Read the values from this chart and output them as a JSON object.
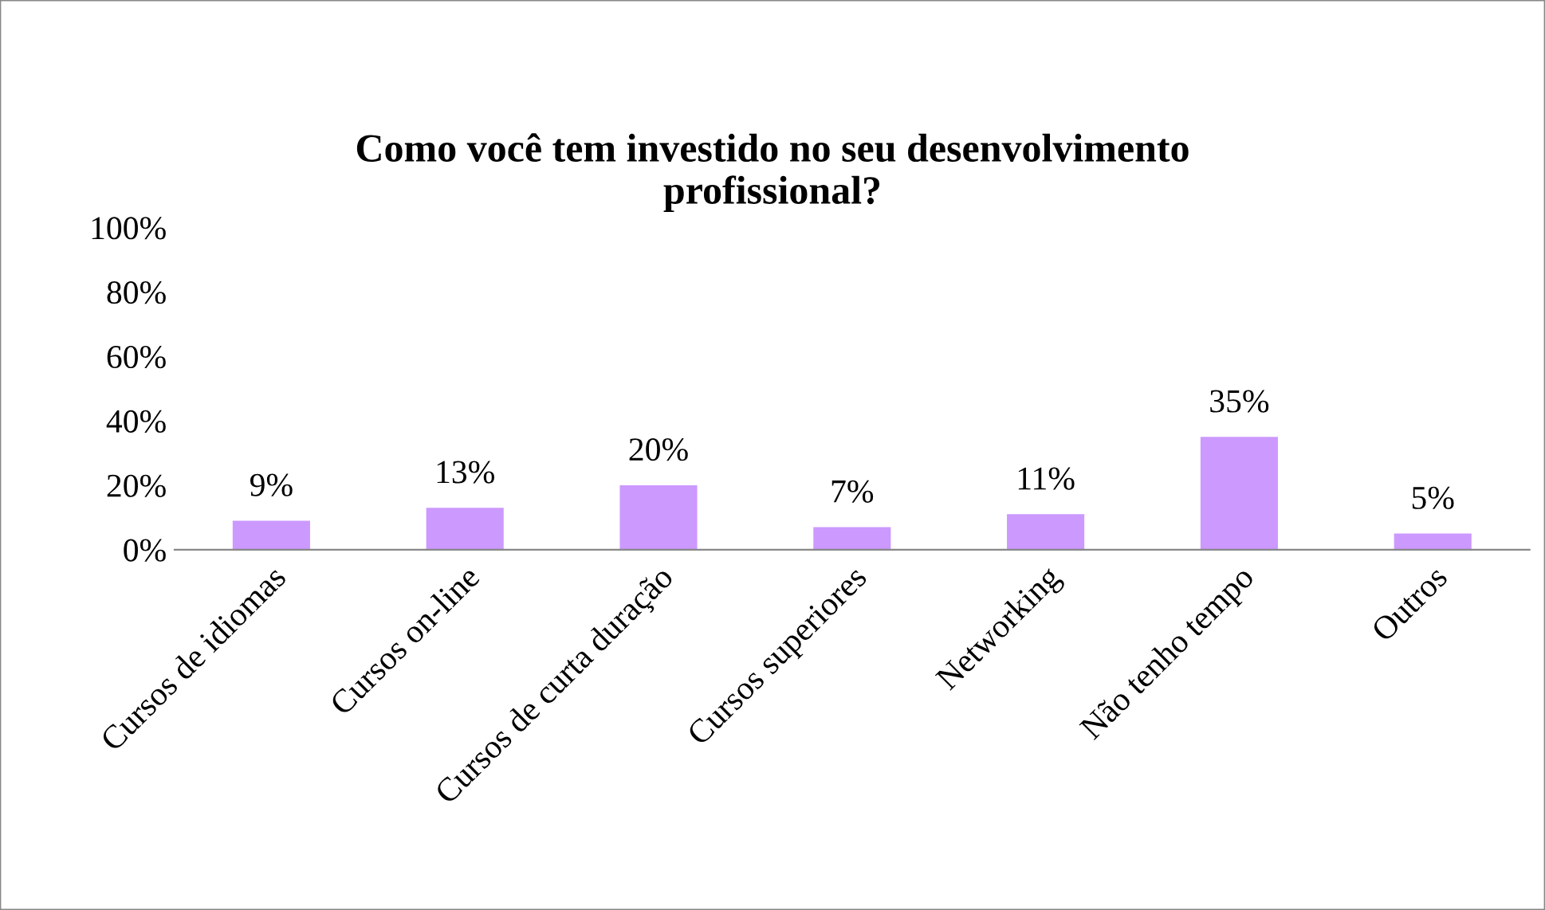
{
  "chart_data": {
    "type": "bar",
    "title": "Como você tem investido no seu desenvolvimento\nprofissional?",
    "categories": [
      "Cursos de idiomas",
      "Cursos on-line",
      "Cursos de curta duração",
      "Cursos superiores",
      "Networking",
      "Não tenho tempo",
      "Outros"
    ],
    "values": [
      9,
      13,
      20,
      7,
      11,
      35,
      5
    ],
    "value_labels": [
      "9%",
      "13%",
      "20%",
      "7%",
      "11%",
      "35%",
      "5%"
    ],
    "color": "#cc99ff",
    "ylim": [
      0,
      100
    ],
    "yticks": [
      {
        "value": 0,
        "label": "0%"
      },
      {
        "value": 20,
        "label": "20%"
      },
      {
        "value": 40,
        "label": "40%"
      },
      {
        "value": 60,
        "label": "60%"
      },
      {
        "value": 80,
        "label": "80%"
      },
      {
        "value": 100,
        "label": "100%"
      }
    ],
    "grid": false,
    "legend": false
  }
}
